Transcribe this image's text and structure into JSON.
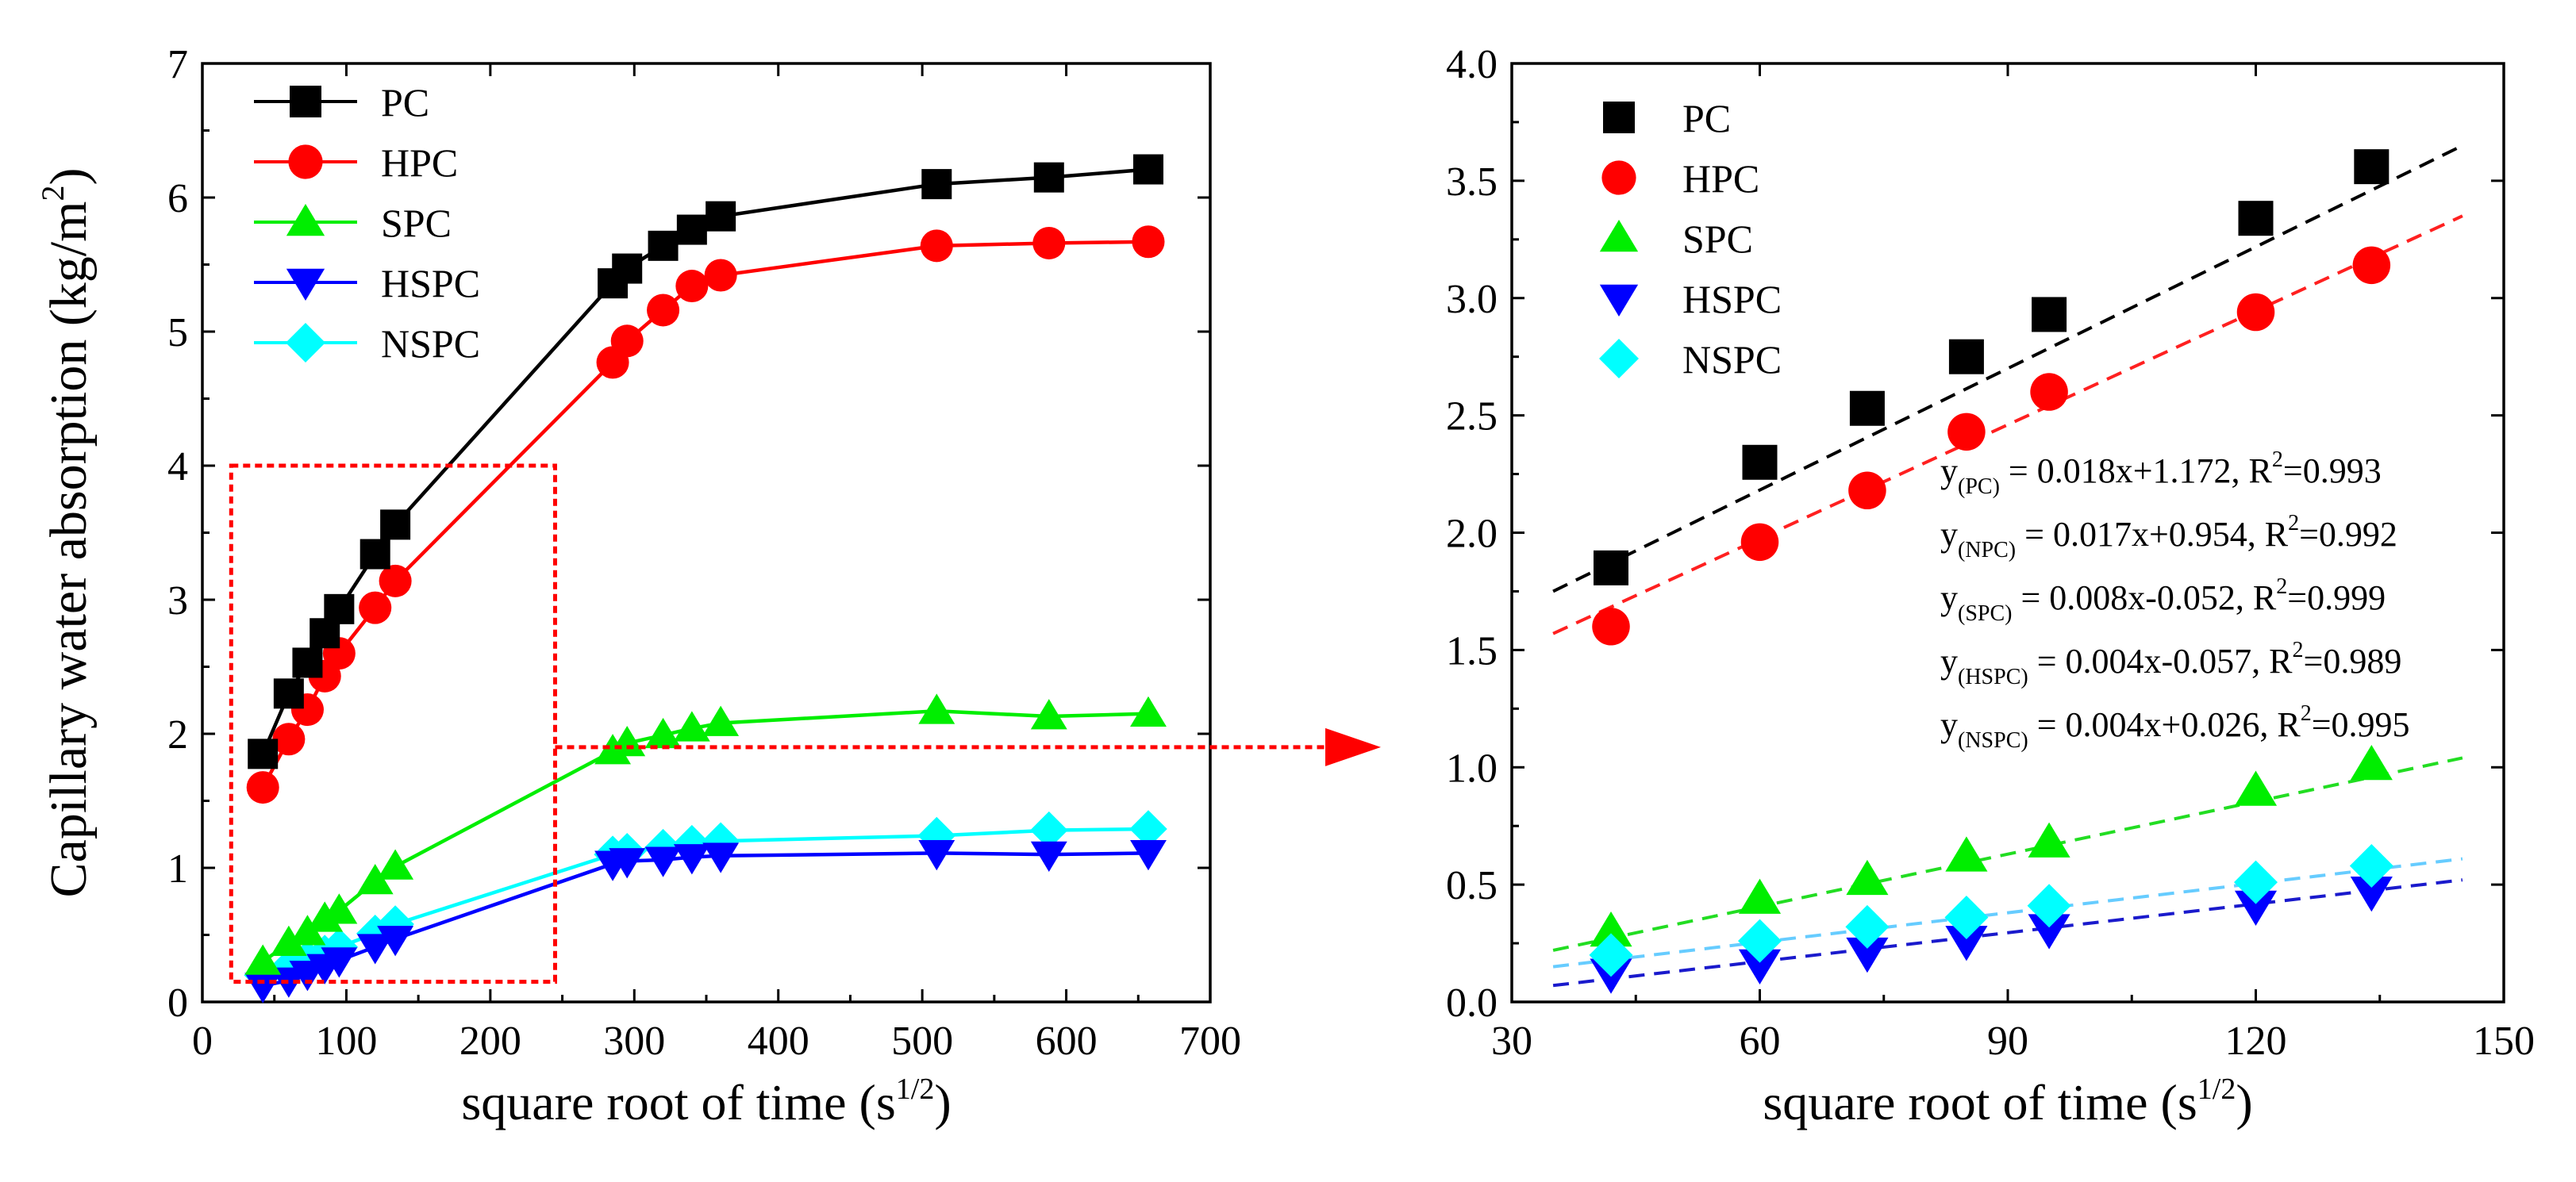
{
  "colors": {
    "PC": "#000000",
    "HPC": "#ff0000",
    "SPC": "#00ee00",
    "HSPC": "#0000ff",
    "NSPC": "#00ffff",
    "zoom_box": "#ff0000",
    "fit_PC": "#000000",
    "fit_HPC": "#ff2020",
    "fit_SPC": "#22dd22",
    "fit_HSPC": "#1a1acc",
    "fit_NSPC": "#66ccff"
  },
  "chart_data": [
    {
      "type": "line",
      "ylabel": "Capillary water absorption (kg/m",
      "ylabel_sup": "2",
      "ylabel_tail": ")",
      "xlabel": "square root of time (s",
      "xlabel_sup": "1/2",
      "xlabel_tail": ")",
      "xlim": [
        0,
        700
      ],
      "ylim": [
        0,
        7
      ],
      "xticks": [
        "0",
        "100",
        "200",
        "300",
        "400",
        "500",
        "600",
        "700"
      ],
      "yticks": [
        "0",
        "1",
        "2",
        "3",
        "4",
        "5",
        "6",
        "7"
      ],
      "legend_position": "top-left",
      "series": [
        {
          "name": "PC",
          "marker": "square",
          "x": [
            42,
            60,
            73,
            85,
            95,
            120,
            134,
            285,
            295,
            320,
            340,
            360,
            510,
            588,
            657
          ],
          "y": [
            1.85,
            2.3,
            2.53,
            2.75,
            2.93,
            3.34,
            3.56,
            5.36,
            5.47,
            5.64,
            5.76,
            5.86,
            6.1,
            6.15,
            6.21
          ]
        },
        {
          "name": "HPC",
          "marker": "circle",
          "x": [
            42,
            60,
            73,
            85,
            95,
            120,
            134,
            285,
            295,
            320,
            340,
            360,
            510,
            588,
            657
          ],
          "y": [
            1.6,
            1.96,
            2.18,
            2.43,
            2.6,
            2.94,
            3.14,
            4.77,
            4.93,
            5.16,
            5.34,
            5.42,
            5.64,
            5.66,
            5.67
          ]
        },
        {
          "name": "SPC",
          "marker": "triangle-up",
          "x": [
            42,
            60,
            73,
            85,
            95,
            120,
            134,
            285,
            295,
            320,
            340,
            360,
            510,
            588,
            657
          ],
          "y": [
            0.3,
            0.44,
            0.52,
            0.62,
            0.68,
            0.9,
            1.01,
            1.87,
            1.93,
            1.99,
            2.04,
            2.08,
            2.17,
            2.13,
            2.15
          ]
        },
        {
          "name": "HSPC",
          "marker": "triangle-down",
          "x": [
            42,
            60,
            73,
            85,
            95,
            120,
            134,
            285,
            295,
            320,
            340,
            360,
            510,
            588,
            657
          ],
          "y": [
            0.12,
            0.16,
            0.21,
            0.26,
            0.31,
            0.41,
            0.47,
            1.03,
            1.05,
            1.06,
            1.08,
            1.09,
            1.11,
            1.1,
            1.11
          ]
        },
        {
          "name": "NSPC",
          "marker": "diamond",
          "x": [
            42,
            60,
            73,
            85,
            95,
            120,
            134,
            285,
            295,
            320,
            340,
            360,
            510,
            588,
            657
          ],
          "y": [
            0.2,
            0.26,
            0.32,
            0.36,
            0.41,
            0.51,
            0.58,
            1.1,
            1.12,
            1.15,
            1.18,
            1.2,
            1.24,
            1.28,
            1.29
          ]
        }
      ],
      "annotation": {
        "kind": "zoom-box",
        "x_range": [
          20,
          245
        ],
        "y_range": [
          0.15,
          4.0
        ]
      }
    },
    {
      "type": "scatter",
      "xlabel": "square root of time (s",
      "xlabel_sup": "1/2",
      "xlabel_tail": ")",
      "xlim": [
        30,
        150
      ],
      "ylim": [
        0,
        4
      ],
      "xticks": [
        "30",
        "60",
        "90",
        "120",
        "150"
      ],
      "yticks": [
        "0.0",
        "0.5",
        "1.0",
        "1.5",
        "2.0",
        "2.5",
        "3.0",
        "3.5",
        "4.0"
      ],
      "legend_position": "top-left",
      "series": [
        {
          "name": "PC",
          "marker": "square",
          "x": [
            42,
            60,
            73,
            85,
            95,
            120,
            134
          ],
          "y": [
            1.85,
            2.3,
            2.53,
            2.75,
            2.93,
            3.34,
            3.56
          ],
          "fit": {
            "x": [
              35,
              145
            ],
            "y": [
              1.75,
              3.65
            ]
          }
        },
        {
          "name": "HPC",
          "marker": "circle",
          "x": [
            42,
            60,
            73,
            85,
            95,
            120,
            134
          ],
          "y": [
            1.6,
            1.96,
            2.18,
            2.43,
            2.6,
            2.94,
            3.14
          ],
          "fit": {
            "x": [
              35,
              145
            ],
            "y": [
              1.57,
              3.35
            ]
          }
        },
        {
          "name": "SPC",
          "marker": "triangle-up",
          "x": [
            42,
            60,
            73,
            85,
            95,
            120,
            134
          ],
          "y": [
            0.3,
            0.44,
            0.52,
            0.62,
            0.68,
            0.9,
            1.01
          ],
          "fit": {
            "x": [
              35,
              145
            ],
            "y": [
              0.22,
              1.04
            ]
          }
        },
        {
          "name": "HSPC",
          "marker": "triangle-down",
          "x": [
            42,
            60,
            73,
            85,
            95,
            120,
            134
          ],
          "y": [
            0.12,
            0.16,
            0.21,
            0.26,
            0.31,
            0.41,
            0.47
          ],
          "fit": {
            "x": [
              35,
              145
            ],
            "y": [
              0.07,
              0.52
            ]
          }
        },
        {
          "name": "NSPC",
          "marker": "diamond",
          "x": [
            42,
            60,
            73,
            85,
            95,
            120,
            134
          ],
          "y": [
            0.2,
            0.26,
            0.32,
            0.36,
            0.41,
            0.51,
            0.58
          ],
          "fit": {
            "x": [
              35,
              145
            ],
            "y": [
              0.15,
              0.61
            ]
          }
        }
      ],
      "equations": [
        {
          "sub": "(PC)",
          "text": " = 0.018x+1.172, R",
          "sup": "2",
          "tail": "=0.993"
        },
        {
          "sub": "(NPC)",
          "text": " = 0.017x+0.954, R",
          "sup": "2",
          "tail": "=0.992"
        },
        {
          "sub": "(SPC)",
          "text": " = 0.008x-0.052, R",
          "sup": "2",
          "tail": "=0.999"
        },
        {
          "sub": "(HSPC)",
          "text": " = 0.004x-0.057, R",
          "sup": "2",
          "tail": "=0.989"
        },
        {
          "sub": "(NSPC)",
          "text": " = 0.004x+0.026, R",
          "sup": "2",
          "tail": "=0.995"
        }
      ],
      "equation_prefix": "y"
    }
  ]
}
